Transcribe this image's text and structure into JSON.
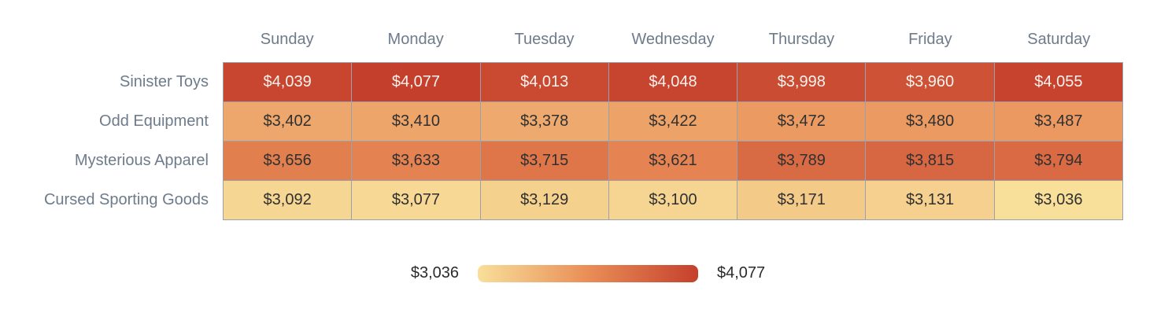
{
  "chart_data": {
    "type": "heatmap",
    "columns": [
      "Sunday",
      "Monday",
      "Tuesday",
      "Wednesday",
      "Thursday",
      "Friday",
      "Saturday"
    ],
    "rows": [
      "Sinister Toys",
      "Odd Equipment",
      "Mysterious Apparel",
      "Cursed Sporting Goods"
    ],
    "values": [
      [
        4039,
        4077,
        4013,
        4048,
        3998,
        3960,
        4055
      ],
      [
        3402,
        3410,
        3378,
        3422,
        3472,
        3480,
        3487
      ],
      [
        3656,
        3633,
        3715,
        3621,
        3789,
        3815,
        3794
      ],
      [
        3092,
        3077,
        3129,
        3100,
        3171,
        3131,
        3036
      ]
    ],
    "value_prefix": "$",
    "colorscale": {
      "min": 3036,
      "max": 4077,
      "stops": [
        "#f8df9a",
        "#e98e57",
        "#c5402c"
      ]
    },
    "text_colors": {
      "dark": "#303030",
      "light": "#f7f2ef"
    },
    "label_color": "#6d7b8b",
    "border_color": "#99a2ac",
    "legend": {
      "min_label": "$3,036",
      "max_label": "$4,077"
    },
    "layout": {
      "grid": true,
      "legend_position": "bottom-center"
    }
  }
}
